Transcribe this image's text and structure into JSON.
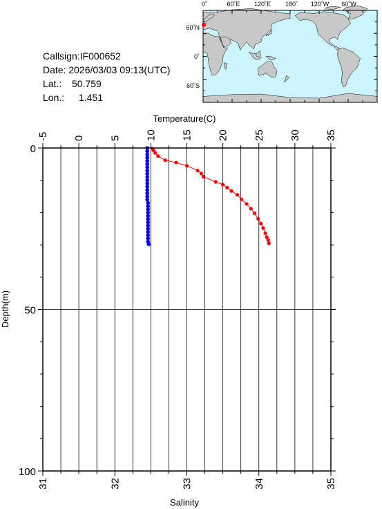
{
  "info": {
    "callsign": "Callsign:IF000652",
    "date": "Date:  2026/03/03 09:13(UTC)",
    "lat_label": "Lat.:",
    "lat_value": "50.759",
    "lon_label": "Lon.:",
    "lon_value": "1.451"
  },
  "map": {
    "top_labels": [
      "0˚",
      "60˚E",
      "120˚E",
      "180˚",
      "120˚W",
      "60˚W"
    ],
    "left_labels": [
      "60˚N",
      "0˚",
      "60˚S"
    ],
    "ocean_color": "#ccf5ff",
    "land_color": "#c8c8c8",
    "marker_color": "#ff0000",
    "marker": {
      "lon": 1.451,
      "lat": 50.759
    }
  },
  "colors": {
    "temperature": "#ff0000",
    "salinity": "#0000ff"
  },
  "chart_data": {
    "type": "line",
    "title": "",
    "xlabel_top": "Temperature(C)",
    "xlabel_bottom": "Salinity",
    "ylabel": "Depth(m)",
    "temperature_range": [
      -5,
      35
    ],
    "temperature_ticks": [
      "-5",
      "0",
      "5",
      "10",
      "15",
      "20",
      "25",
      "30",
      "35"
    ],
    "salinity_range": [
      31,
      35
    ],
    "salinity_ticks": [
      "31",
      "32",
      "33",
      "34",
      "35"
    ],
    "depth_range": [
      0,
      100
    ],
    "depth_ticks": [
      "0",
      "50",
      "100"
    ],
    "grid": true,
    "series": [
      {
        "axis": "temperature",
        "values": [
          [
            10.2,
            0.2
          ],
          [
            10.4,
            0.8
          ],
          [
            10.6,
            1.5
          ],
          [
            11.0,
            2.5
          ],
          [
            12.0,
            3.8
          ],
          [
            13.5,
            4.5
          ],
          [
            15.0,
            5.5
          ],
          [
            16.5,
            7.0
          ],
          [
            17.0,
            7.9
          ],
          [
            17.3,
            8.9
          ],
          [
            19.0,
            10.5
          ],
          [
            20.0,
            11.3
          ],
          [
            20.6,
            12.3
          ],
          [
            21.2,
            13.3
          ],
          [
            22.0,
            14.5
          ],
          [
            22.6,
            15.9
          ],
          [
            23.3,
            17.3
          ],
          [
            23.9,
            18.8
          ],
          [
            24.4,
            20.2
          ],
          [
            24.9,
            21.9
          ],
          [
            25.3,
            23.4
          ],
          [
            25.6,
            24.8
          ],
          [
            25.9,
            26.4
          ],
          [
            26.1,
            27.6
          ],
          [
            26.3,
            28.5
          ],
          [
            26.4,
            29.5
          ]
        ]
      },
      {
        "axis": "salinity",
        "values": [
          [
            32.45,
            0.0
          ],
          [
            32.45,
            1.0
          ],
          [
            32.45,
            2.0
          ],
          [
            32.45,
            3.0
          ],
          [
            32.45,
            4.0
          ],
          [
            32.45,
            5.0
          ],
          [
            32.45,
            6.0
          ],
          [
            32.45,
            7.0
          ],
          [
            32.45,
            8.0
          ],
          [
            32.45,
            9.0
          ],
          [
            32.45,
            10.0
          ],
          [
            32.45,
            11.0
          ],
          [
            32.45,
            12.0
          ],
          [
            32.45,
            13.0
          ],
          [
            32.45,
            14.0
          ],
          [
            32.45,
            15.0
          ],
          [
            32.45,
            16.0
          ],
          [
            32.46,
            17.0
          ],
          [
            32.46,
            18.0
          ],
          [
            32.46,
            19.0
          ],
          [
            32.46,
            20.0
          ],
          [
            32.46,
            21.0
          ],
          [
            32.46,
            22.0
          ],
          [
            32.46,
            23.0
          ],
          [
            32.46,
            24.0
          ],
          [
            32.46,
            25.0
          ],
          [
            32.46,
            26.0
          ],
          [
            32.46,
            27.0
          ],
          [
            32.46,
            28.0
          ],
          [
            32.46,
            29.0
          ],
          [
            32.47,
            29.8
          ]
        ]
      }
    ]
  }
}
